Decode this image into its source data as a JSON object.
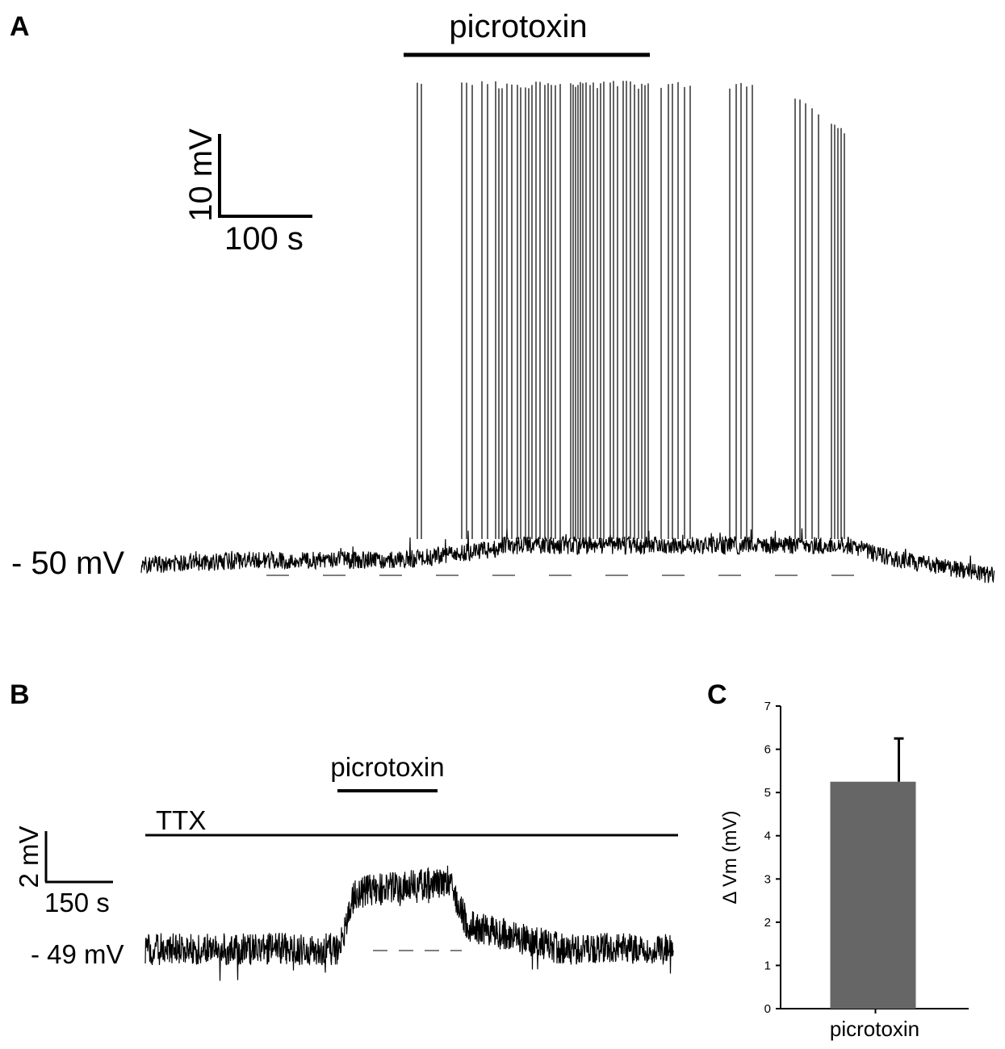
{
  "panels": {
    "a": {
      "letter": "A",
      "drug_label": "picrotoxin",
      "scale_v": "10 mV",
      "scale_t": "100 s",
      "baseline_label": "- 50 mV"
    },
    "b": {
      "letter": "B",
      "drug_label": "picrotoxin",
      "ttx_label": "TTX",
      "scale_v": "2 mV",
      "scale_t": "150 s",
      "baseline_label": "- 49 mV"
    },
    "c": {
      "letter": "C"
    }
  },
  "chart_data": [
    {
      "panel": "A",
      "type": "line",
      "title": "",
      "description_markers": [
        "picrotoxin"
      ],
      "baseline_mV": -50,
      "scalebar": {
        "voltage": "10 mV",
        "time": "100 s"
      }
    },
    {
      "panel": "B",
      "type": "line",
      "title": "",
      "description_markers": [
        "TTX",
        "picrotoxin"
      ],
      "baseline_mV": -49,
      "scalebar": {
        "voltage": "2 mV",
        "time": "150 s"
      }
    },
    {
      "panel": "C",
      "type": "bar",
      "title": "",
      "categories": [
        "picrotoxin"
      ],
      "values": [
        5.25
      ],
      "error_plus": [
        1.0
      ],
      "ylabel": "Δ Vm (mV)",
      "xlabel": "",
      "ylim": [
        0,
        7
      ],
      "yticks": [
        "0",
        "1",
        "2",
        "3",
        "4",
        "5",
        "6",
        "7"
      ],
      "grid": false,
      "colors": {
        "bar": "#666666",
        "error": "#000000"
      }
    }
  ]
}
